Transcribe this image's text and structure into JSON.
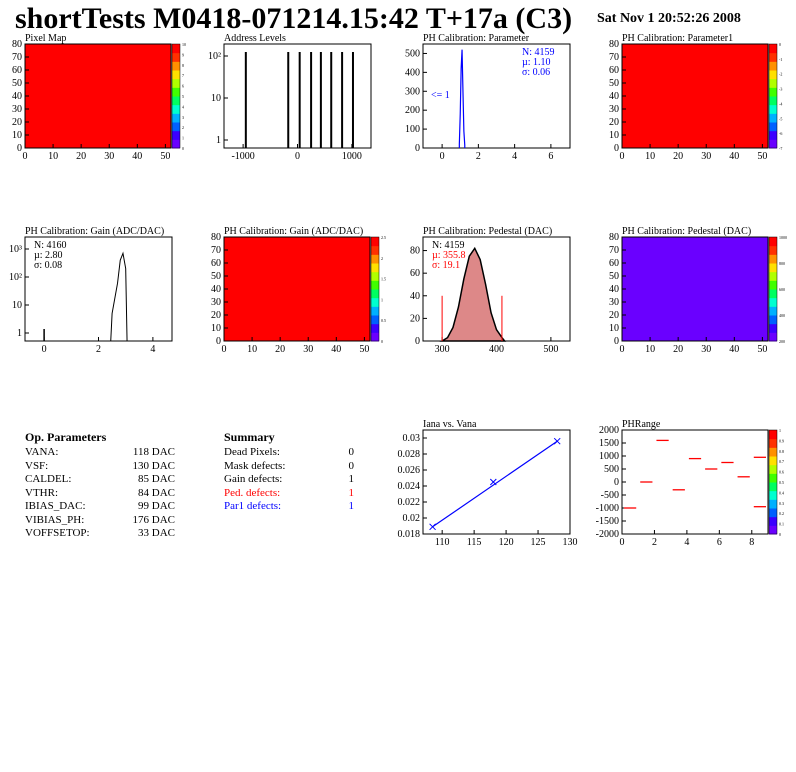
{
  "header": {
    "title": "shortTests M0418-071214.15:42 T+17a (C3)",
    "date": "Sat Nov  1 20:52:26 2008"
  },
  "colors": {
    "red": "#ff0000",
    "blue": "#0000ff",
    "purple": "#6a00ff",
    "pedfill": "#d88"
  },
  "chart_data": [
    {
      "id": "pixelmap",
      "type": "heatmap",
      "title": "Pixel Map",
      "xlim": [
        0,
        52
      ],
      "ylim": [
        0,
        80
      ],
      "xticks": [
        "0",
        "10",
        "20",
        "30",
        "40",
        "50"
      ],
      "yticks": [
        "0",
        "10",
        "20",
        "30",
        "40",
        "50",
        "60",
        "70",
        "80"
      ],
      "zticks": [
        "0",
        "1",
        "2",
        "3",
        "4",
        "5",
        "6",
        "7",
        "8",
        "9",
        "10"
      ],
      "fill": "red"
    },
    {
      "id": "addr",
      "type": "bar",
      "title": "Address Levels",
      "log": true,
      "xticks": [
        "-1000",
        "0",
        "1000"
      ],
      "yticks": [
        "1",
        "10",
        "10²"
      ],
      "peaks": [
        {
          "x": -950,
          "y": 400
        },
        {
          "x": -170,
          "y": 300
        },
        {
          "x": 40,
          "y": 350
        },
        {
          "x": 250,
          "y": 280
        },
        {
          "x": 430,
          "y": 320
        },
        {
          "x": 620,
          "y": 260
        },
        {
          "x": 820,
          "y": 300
        },
        {
          "x": 1020,
          "y": 200
        }
      ]
    },
    {
      "id": "phpar",
      "type": "bar",
      "title": "PH Calibration: Parameter",
      "xticks": [
        "0",
        "2",
        "4",
        "6"
      ],
      "yticks": [
        "0",
        "100",
        "200",
        "300",
        "400",
        "500"
      ],
      "ylim": [
        0,
        550
      ],
      "stats": {
        "N": "N: 4159",
        "mu": "µ: 1.10",
        "sigma": "σ: 0.06"
      },
      "note": "<= 1",
      "values": [
        {
          "x": 0.95,
          "y": 20
        },
        {
          "x": 1.0,
          "y": 180
        },
        {
          "x": 1.05,
          "y": 420
        },
        {
          "x": 1.1,
          "y": 520
        },
        {
          "x": 1.15,
          "y": 300
        },
        {
          "x": 1.2,
          "y": 90
        },
        {
          "x": 1.25,
          "y": 15
        }
      ]
    },
    {
      "id": "phpar1",
      "type": "heatmap",
      "title": "PH Calibration: Parameter1",
      "xlim": [
        0,
        52
      ],
      "ylim": [
        0,
        80
      ],
      "xticks": [
        "0",
        "10",
        "20",
        "30",
        "40",
        "50"
      ],
      "yticks": [
        "0",
        "10",
        "20",
        "30",
        "40",
        "50",
        "60",
        "70",
        "80"
      ],
      "zticks": [
        "-7",
        "-6",
        "-5",
        "-4",
        "-3",
        "-2",
        "-1",
        "0"
      ],
      "fill": "red"
    },
    {
      "id": "gain",
      "type": "bar",
      "title": "PH Calibration: Gain (ADC/DAC)",
      "log": true,
      "xticks": [
        "0",
        "2",
        "4"
      ],
      "yticks": [
        "1",
        "10",
        "10²",
        "10³"
      ],
      "stats": {
        "N": "N: 4160",
        "mu": "µ: 2.80",
        "sigma": "σ: 0.08"
      },
      "values": [
        {
          "x": 0.0,
          "y": 1
        },
        {
          "x": 2.5,
          "y": 5
        },
        {
          "x": 2.7,
          "y": 60
        },
        {
          "x": 2.8,
          "y": 400
        },
        {
          "x": 2.9,
          "y": 700
        },
        {
          "x": 3.0,
          "y": 200
        }
      ]
    },
    {
      "id": "gainmap",
      "type": "heatmap",
      "title": "PH Calibration: Gain (ADC/DAC)",
      "xlim": [
        0,
        52
      ],
      "ylim": [
        0,
        80
      ],
      "xticks": [
        "0",
        "10",
        "20",
        "30",
        "40",
        "50"
      ],
      "yticks": [
        "0",
        "10",
        "20",
        "30",
        "40",
        "50",
        "60",
        "70",
        "80"
      ],
      "zticks": [
        "0",
        "0.5",
        "1",
        "1.5",
        "2",
        "2.5"
      ],
      "fill": "red"
    },
    {
      "id": "ped",
      "type": "bar",
      "title": "PH Calibration: Pedestal (DAC)",
      "xticks": [
        "300",
        "400",
        "500"
      ],
      "yticks": [
        "0",
        "20",
        "40",
        "60",
        "80"
      ],
      "ylim": [
        0,
        92
      ],
      "stats": {
        "N": "N: 4159",
        "mu": "µ: 355.8",
        "sigma": "σ: 19.1"
      },
      "values": [
        {
          "x": 310,
          "y": 3
        },
        {
          "x": 320,
          "y": 12
        },
        {
          "x": 330,
          "y": 30
        },
        {
          "x": 340,
          "y": 55
        },
        {
          "x": 350,
          "y": 75
        },
        {
          "x": 360,
          "y": 82
        },
        {
          "x": 370,
          "y": 72
        },
        {
          "x": 380,
          "y": 50
        },
        {
          "x": 390,
          "y": 25
        },
        {
          "x": 400,
          "y": 10
        },
        {
          "x": 410,
          "y": 3
        }
      ]
    },
    {
      "id": "pedmap",
      "type": "heatmap",
      "title": "PH Calibration: Pedestal (DAC)",
      "xlim": [
        0,
        52
      ],
      "ylim": [
        0,
        80
      ],
      "xticks": [
        "0",
        "10",
        "20",
        "30",
        "40",
        "50"
      ],
      "yticks": [
        "0",
        "10",
        "20",
        "30",
        "40",
        "50",
        "60",
        "70",
        "80"
      ],
      "zticks": [
        "200",
        "400",
        "600",
        "800",
        "1000"
      ],
      "fill": "purple"
    },
    {
      "id": "iana",
      "type": "line",
      "title": "Iana vs. Vana",
      "xlim": [
        107,
        130
      ],
      "ylim": [
        0.018,
        0.031
      ],
      "xticks": [
        "110",
        "115",
        "120",
        "125",
        "130"
      ],
      "yticks": [
        "0.018",
        "0.02",
        "0.022",
        "0.024",
        "0.026",
        "0.028",
        "0.03"
      ],
      "points": [
        {
          "x": 108.5,
          "y": 0.0189
        },
        {
          "x": 118,
          "y": 0.0245
        },
        {
          "x": 128,
          "y": 0.0296
        }
      ]
    },
    {
      "id": "phrange",
      "type": "scatter",
      "title": "PHRange",
      "xlim": [
        0,
        9
      ],
      "ylim": [
        -2000,
        2000
      ],
      "xticks": [
        "0",
        "2",
        "4",
        "6",
        "8"
      ],
      "yticks": [
        "-2000",
        "-1500",
        "-1000",
        "-500",
        "0",
        "500",
        "1000",
        "1500",
        "2000"
      ],
      "zticks": [
        "0",
        "0.1",
        "0.2",
        "0.3",
        "0.4",
        "0.5",
        "0.6",
        "0.7",
        "0.8",
        "0.9",
        "1"
      ],
      "segments": [
        {
          "x": 0.5,
          "y": -1000
        },
        {
          "x": 1.5,
          "y": 0
        },
        {
          "x": 2.5,
          "y": 1600
        },
        {
          "x": 3.5,
          "y": -300
        },
        {
          "x": 4.5,
          "y": 900
        },
        {
          "x": 5.5,
          "y": 500
        },
        {
          "x": 6.5,
          "y": 750
        },
        {
          "x": 7.5,
          "y": 200
        },
        {
          "x": 8.5,
          "y": -950
        },
        {
          "x": 8.5,
          "y": 950
        }
      ]
    }
  ],
  "params": {
    "title": "Op. Parameters",
    "rows": [
      [
        "VANA:",
        "118 DAC"
      ],
      [
        "VSF:",
        "130 DAC"
      ],
      [
        "CALDEL:",
        "85 DAC"
      ],
      [
        "VTHR:",
        "84 DAC"
      ],
      [
        "IBIAS_DAC:",
        "99 DAC"
      ],
      [
        "VIBIAS_PH:",
        "176 DAC"
      ],
      [
        "VOFFSETOP:",
        "33 DAC"
      ]
    ]
  },
  "summary": {
    "title": "Summary",
    "rows": [
      [
        "Dead Pixels:",
        "0",
        "black"
      ],
      [
        "Mask defects:",
        "0",
        "black"
      ],
      [
        "Gain defects:",
        "1",
        "black"
      ],
      [
        "Ped. defects:",
        "1",
        "red"
      ],
      [
        "Par1 defects:",
        "1",
        "blue"
      ]
    ]
  }
}
